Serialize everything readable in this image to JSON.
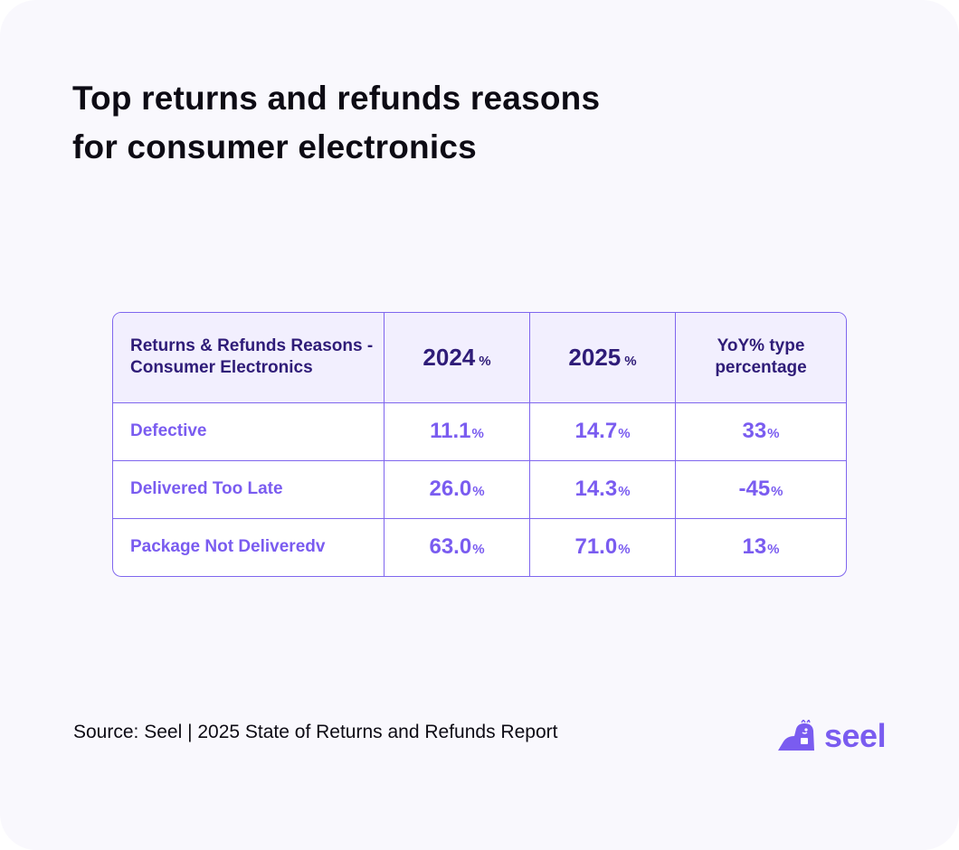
{
  "title_line1": "Top returns and refunds reasons",
  "title_line2": "for consumer electronics",
  "source": "Source: Seel | 2025 State of Returns and Refunds Report",
  "logo_text": "seel",
  "colors": {
    "accent": "#7a5cf0",
    "header_bg": "#f2effe",
    "header_text": "#2f1c78",
    "border": "#7f66ee",
    "background": "#f9f8fd"
  },
  "icons": {
    "logo": "seal-logo-icon"
  },
  "chart_data": {
    "type": "table",
    "columns": [
      "Returns & Refunds Reasons - Consumer Electronics",
      "2024",
      "2025",
      "YoY% type percentage"
    ],
    "column_units": [
      "",
      "%",
      "%",
      ""
    ],
    "rows": [
      {
        "reason": "Defective",
        "y2024": "11.1",
        "y2025": "14.7",
        "yoy": "33"
      },
      {
        "reason": "Delivered Too Late",
        "y2024": "26.0",
        "y2025": "14.3",
        "yoy": "-45"
      },
      {
        "reason": "Package Not Deliveredv",
        "y2024": "63.0",
        "y2025": "71.0",
        "yoy": "13"
      }
    ],
    "value_unit": "%"
  }
}
